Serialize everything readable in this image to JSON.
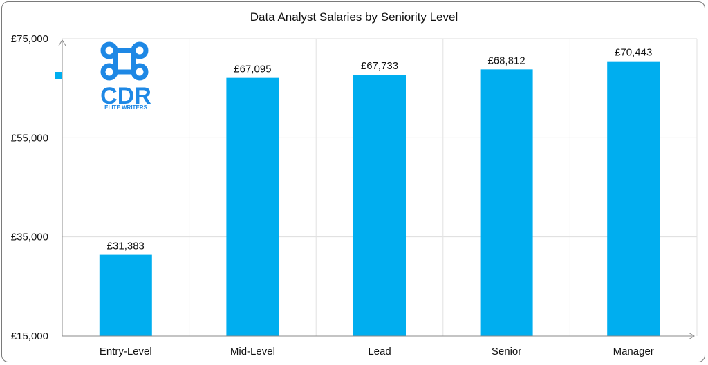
{
  "chart_data": {
    "type": "bar",
    "title": "Data Analyst Salaries by Seniority Level",
    "categories": [
      "Entry-Level",
      "Mid-Level",
      "Lead",
      "Senior",
      "Manager"
    ],
    "values": [
      31383,
      67095,
      67733,
      68812,
      70443
    ],
    "value_labels": [
      "£31,383",
      "£67,095",
      "£67,733",
      "£68,812",
      "£70,443"
    ],
    "ylim": [
      15000,
      75000
    ],
    "yticks": [
      15000,
      35000,
      55000,
      75000
    ],
    "ytick_labels": [
      "£15,000",
      "£35,000",
      "£55,000",
      "£75,000"
    ],
    "xlabel": "",
    "ylabel": "",
    "grid": true,
    "bar_color": "#00AEEF"
  },
  "logo": {
    "mark": "CDR",
    "tagline": "ELITE WRITERS",
    "color": "#1E88E5"
  }
}
